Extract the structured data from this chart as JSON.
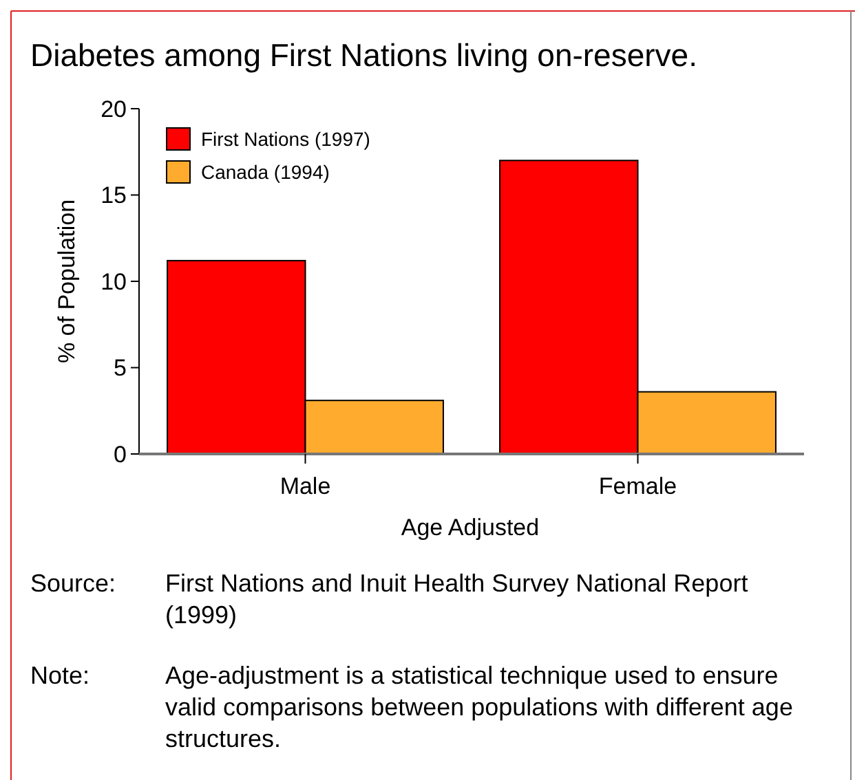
{
  "chart_data": {
    "type": "bar",
    "title": "Diabetes among First Nations living on-reserve.",
    "categories": [
      "Male",
      "Female"
    ],
    "series": [
      {
        "name": "First Nations (1997)",
        "color": "#ff0000",
        "values": [
          11.2,
          17.0
        ]
      },
      {
        "name": "Canada (1994)",
        "color": "#ffab2e",
        "values": [
          3.1,
          3.6
        ]
      }
    ],
    "ylabel": "% of Population",
    "xlabel": "Age Adjusted",
    "ylim": [
      0,
      20
    ],
    "yticks": [
      0,
      5,
      10,
      15,
      20
    ],
    "grid": false,
    "legend": "top left",
    "annotations": [
      "Source: First Nations and Inuit Health Survey National Report (1999)",
      "Note: Age-adjustment is a statistical technique used to ensure valid comparisons between populations with different age structures."
    ]
  }
}
